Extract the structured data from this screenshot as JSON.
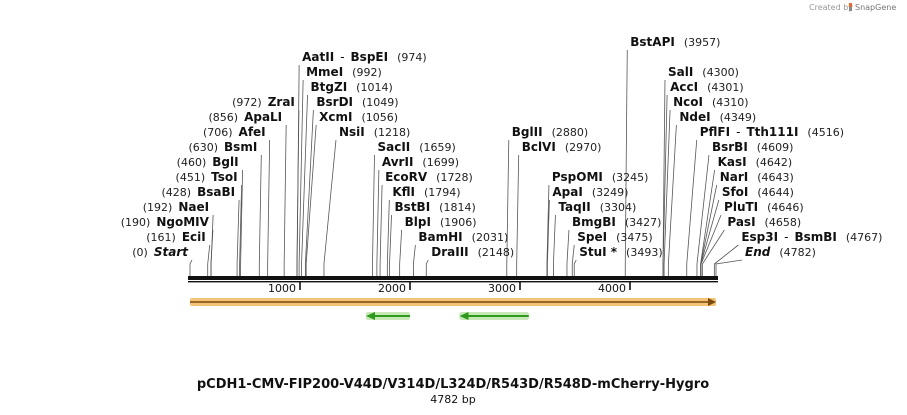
{
  "credit": {
    "prefix": "Created by",
    "brand": "SnapGene"
  },
  "title": "pCDH1-CMV-FIP200-V44D/V314D/L324D/R543D/R548D-mCherry-Hygro",
  "subtitle": "4782 bp",
  "colors": {
    "backbone": "#111111",
    "orf_fill": "#f2b95a",
    "orf_stroke": "#7a4a10",
    "arrow": "#2e9a1c",
    "arrow_glow": "#c8e8b8",
    "leader": "#555555"
  },
  "chart_data": {
    "type": "linear-plasmid-map",
    "length_bp": 4782,
    "ticks": [
      1000,
      2000,
      3000,
      4000
    ],
    "features": [
      {
        "name": "ORF",
        "start": 0,
        "end": 4782,
        "direction": "forward"
      },
      {
        "name": "arrow",
        "start": 1600,
        "end": 2000,
        "direction": "reverse"
      },
      {
        "name": "arrow",
        "start": 2450,
        "end": 3080,
        "direction": "reverse"
      }
    ],
    "sites": [
      {
        "name": "Start",
        "pos": 0,
        "italic": true
      },
      {
        "name": "EciI",
        "pos": 161
      },
      {
        "name": "NgoMIV",
        "pos": 190
      },
      {
        "name": "NaeI",
        "pos": 192
      },
      {
        "name": "BsaBI",
        "pos": 428
      },
      {
        "name": "TsoI",
        "pos": 451
      },
      {
        "name": "BglI",
        "pos": 460
      },
      {
        "name": "BsmI",
        "pos": 630
      },
      {
        "name": "AfeI",
        "pos": 706
      },
      {
        "name": "ApaLI",
        "pos": 856
      },
      {
        "name": "ZraI",
        "pos": 972
      },
      {
        "name": "AatII",
        "name2": "BspEI",
        "pos": 974
      },
      {
        "name": "MmeI",
        "pos": 992
      },
      {
        "name": "BtgZI",
        "pos": 1014
      },
      {
        "name": "BsrDI",
        "pos": 1049
      },
      {
        "name": "XcmI",
        "pos": 1056
      },
      {
        "name": "NsiI",
        "pos": 1218
      },
      {
        "name": "SacII",
        "pos": 1659
      },
      {
        "name": "AvrII",
        "pos": 1699
      },
      {
        "name": "EcoRV",
        "pos": 1728
      },
      {
        "name": "KflI",
        "pos": 1794
      },
      {
        "name": "BstBI",
        "pos": 1814
      },
      {
        "name": "BlpI",
        "pos": 1906
      },
      {
        "name": "BamHI",
        "pos": 2031
      },
      {
        "name": "DraIII",
        "pos": 2148
      },
      {
        "name": "BglII",
        "pos": 2880
      },
      {
        "name": "BclVI",
        "pos": 2970
      },
      {
        "name": "PspOMI",
        "pos": 3245
      },
      {
        "name": "ApaI",
        "pos": 3249
      },
      {
        "name": "TaqII",
        "pos": 3304
      },
      {
        "name": "BmgBI",
        "pos": 3427
      },
      {
        "name": "SpeI",
        "pos": 3475
      },
      {
        "name": "StuI *",
        "pos": 3493
      },
      {
        "name": "BstAPI",
        "pos": 3957
      },
      {
        "name": "SalI",
        "pos": 4300
      },
      {
        "name": "AccI",
        "pos": 4301
      },
      {
        "name": "NcoI",
        "pos": 4310
      },
      {
        "name": "NdeI",
        "pos": 4349
      },
      {
        "name": "PflFI",
        "name2": "Tth111I",
        "pos": 4516
      },
      {
        "name": "BsrBI",
        "pos": 4609
      },
      {
        "name": "KasI",
        "pos": 4642
      },
      {
        "name": "NarI",
        "pos": 4643
      },
      {
        "name": "SfoI",
        "pos": 4644
      },
      {
        "name": "PluTI",
        "pos": 4646
      },
      {
        "name": "PasI",
        "pos": 4658
      },
      {
        "name": "Esp3I",
        "name2": "BsmBI",
        "pos": 4767
      },
      {
        "name": "End",
        "pos": 4782,
        "italic": true
      }
    ]
  }
}
